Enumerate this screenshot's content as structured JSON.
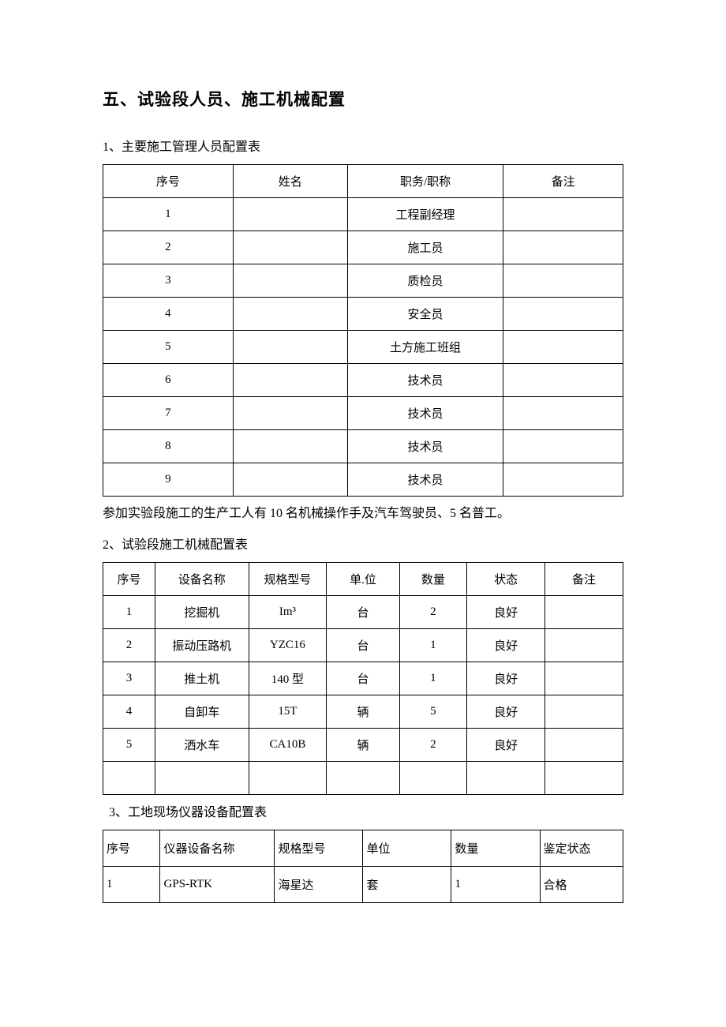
{
  "section_title": "五、试验段人员、施工机械配置",
  "sub1_title": "1、主要施工管理人员配置表",
  "table1": {
    "headers": {
      "seq": "序号",
      "name": "姓名",
      "role": "职务/职称",
      "note": "备注"
    },
    "rows": [
      {
        "seq": "1",
        "name": "",
        "role": "工程副经理",
        "note": ""
      },
      {
        "seq": "2",
        "name": "",
        "role": "施工员",
        "note": ""
      },
      {
        "seq": "3",
        "name": "",
        "role": "质检员",
        "note": ""
      },
      {
        "seq": "4",
        "name": "",
        "role": "安全员",
        "note": ""
      },
      {
        "seq": "5",
        "name": "",
        "role": "土方施工班组",
        "note": ""
      },
      {
        "seq": "6",
        "name": "",
        "role": "技术员",
        "note": ""
      },
      {
        "seq": "7",
        "name": "",
        "role": "技术员",
        "note": ""
      },
      {
        "seq": "8",
        "name": "",
        "role": "技术员",
        "note": ""
      },
      {
        "seq": "9",
        "name": "",
        "role": "技术员",
        "note": ""
      }
    ]
  },
  "paragraph1": "参加实验段施工的生产工人有 10 名机械操作手及汽车驾驶员、5 名普工。",
  "sub2_title": "2、试验段施工机械配置表",
  "table2": {
    "headers": {
      "seq": "序号",
      "dev": "设备名称",
      "spec": "规格型号",
      "unit": "单.位",
      "qty": "数量",
      "stat": "状态",
      "note": "备注"
    },
    "rows": [
      {
        "seq": "1",
        "dev": "挖掘机",
        "spec": "Im³",
        "unit": "台",
        "qty": "2",
        "stat": "良好",
        "note": ""
      },
      {
        "seq": "2",
        "dev": "振动压路机",
        "spec": "YZC16",
        "unit": "台",
        "qty": "1",
        "stat": "良好",
        "note": ""
      },
      {
        "seq": "3",
        "dev": "推土机",
        "spec": "140 型",
        "unit": "台",
        "qty": "1",
        "stat": "良好",
        "note": ""
      },
      {
        "seq": "4",
        "dev": "自卸车",
        "spec": "15T",
        "unit": "辆",
        "qty": "5",
        "stat": "良好",
        "note": ""
      },
      {
        "seq": "5",
        "dev": "洒水车",
        "spec": "CA10B",
        "unit": "辆",
        "qty": "2",
        "stat": "良好",
        "note": ""
      },
      {
        "seq": "",
        "dev": "",
        "spec": "",
        "unit": "",
        "qty": "",
        "stat": "",
        "note": ""
      }
    ]
  },
  "sub3_title": "3、工地现场仪器设备配置表",
  "table3": {
    "headers": {
      "seq": "序号",
      "dev": "仪器设备名称",
      "spec": "规格型号",
      "unit": "单位",
      "qty": "数量",
      "stat": "鉴定状态"
    },
    "rows": [
      {
        "seq": "1",
        "dev": "GPS-RTK",
        "spec": "海星达",
        "unit": "套",
        "qty": "1",
        "stat": "合格"
      }
    ]
  }
}
